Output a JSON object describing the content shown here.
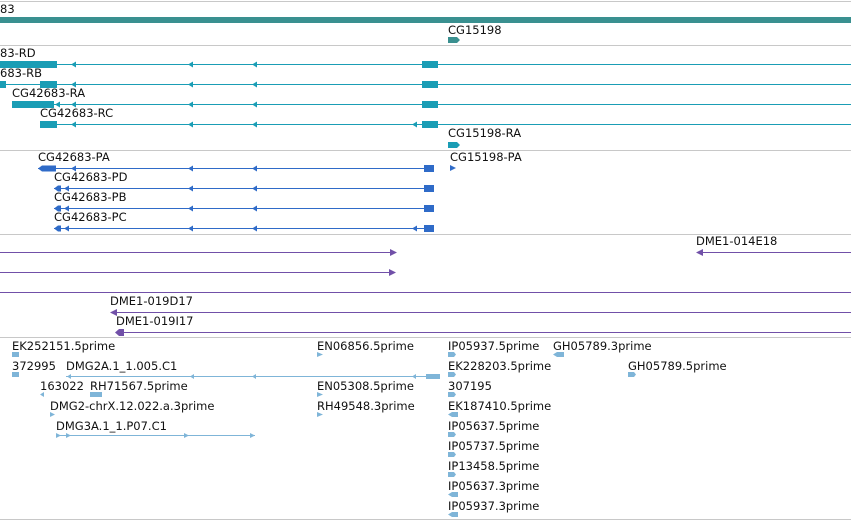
{
  "colors": {
    "gene_bar": "#3a9090",
    "transcript_cyan": "#1a9db5",
    "transcript_blue": "#2f6bc8",
    "clone_purple": "#7150a8",
    "est_light": "#7fb5d8",
    "separator": "#c8c8c8"
  },
  "gene_track": {
    "label": "83",
    "gene_label": "CG15198"
  },
  "mrna_track": {
    "labels": [
      "83-RD",
      "683-RB",
      "CG42683-RA",
      "CG42683-RC",
      "CG15198-RA"
    ]
  },
  "protein_track": {
    "labels": [
      "CG42683-PA",
      "CG15198-PA",
      "CG42683-PD",
      "CG42683-PB",
      "CG42683-PC"
    ]
  },
  "clone_track": {
    "labels": [
      "DME1-014E18",
      "DME1-019D17",
      "DME1-019I17"
    ]
  },
  "est_track": {
    "labels": [
      "EK252151.5prime",
      "EN06856.5prime",
      "IP05937.5prime",
      "GH05789.3prime",
      "372995",
      "DMG2A.1_1.005.C1",
      "EK228203.5prime",
      "GH05789.5prime",
      "163022",
      "RH71567.5prime",
      "EN05308.5prime",
      "307195",
      "DMG2-chrX.12.022.a.3prime",
      "RH49548.3prime",
      "EK187410.5prime",
      "DMG3A.1_1.P07.C1",
      "IP05637.5prime",
      "IP05737.5prime",
      "IP13458.5prime",
      "IP05637.3prime",
      "IP05937.3prime"
    ]
  }
}
